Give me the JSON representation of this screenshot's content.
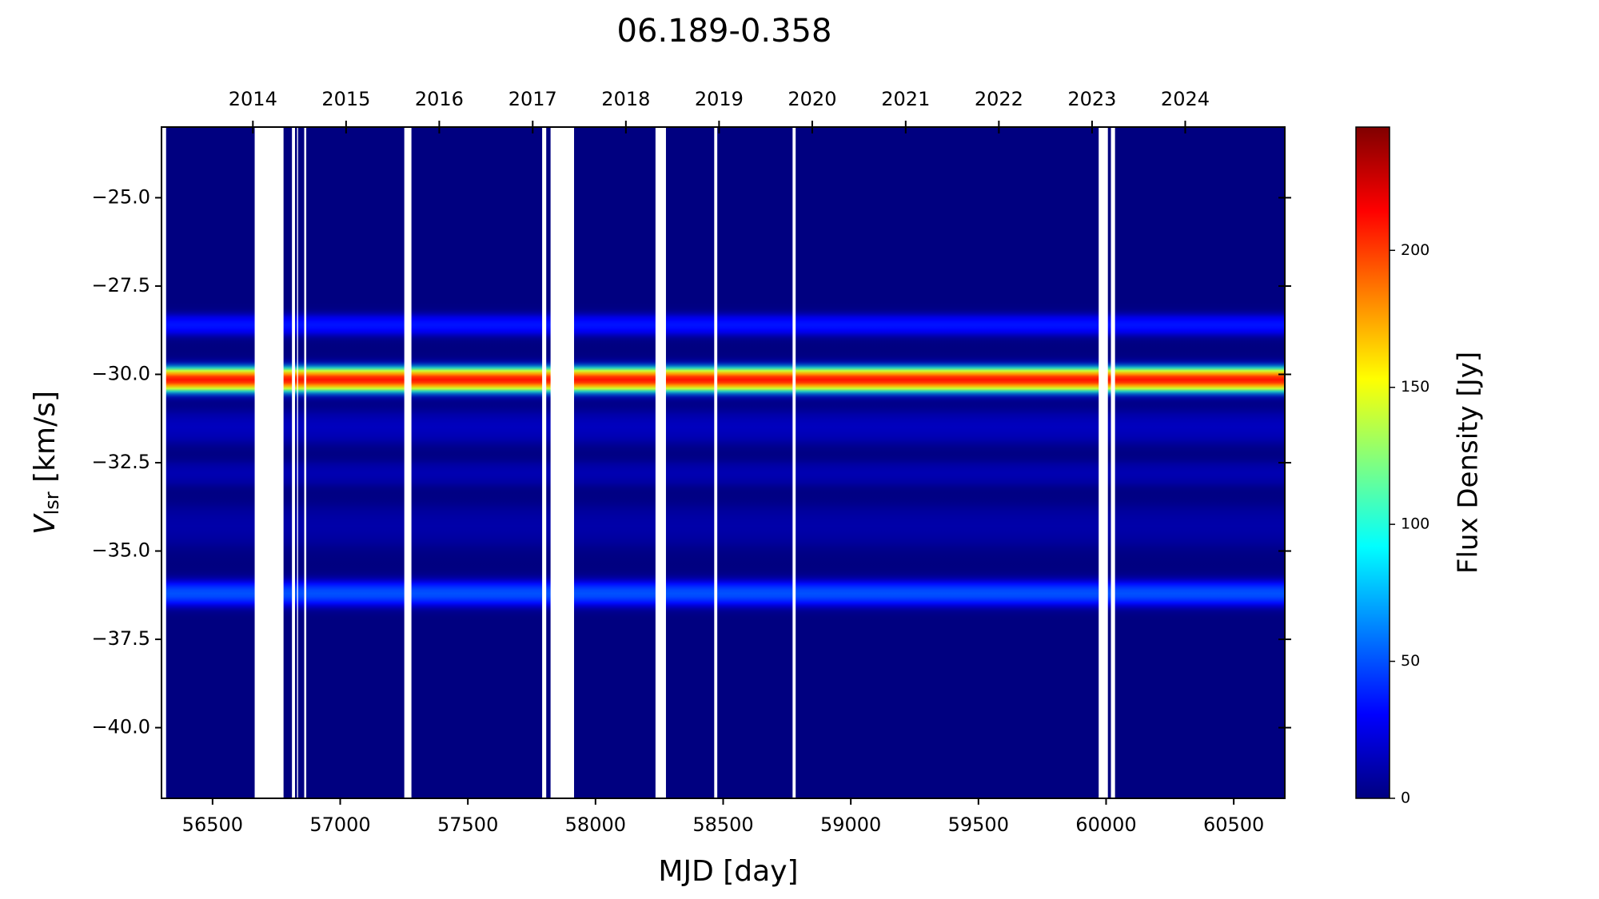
{
  "chart_data": {
    "type": "heatmap",
    "title": "06.189-0.358",
    "xlabel": "MJD [day]",
    "ylabel": [
      "V",
      "lsr",
      " [km/s]"
    ],
    "colorbar_label": "Flux Density [Jy]",
    "colormap": "jet",
    "xlim": [
      56300,
      60700
    ],
    "xticks": [
      56500,
      57000,
      57500,
      58000,
      58500,
      59000,
      59500,
      60000,
      60500
    ],
    "top_xticks": [
      {
        "value": 56658,
        "label": "2014"
      },
      {
        "value": 57023,
        "label": "2015"
      },
      {
        "value": 57388,
        "label": "2016"
      },
      {
        "value": 57754,
        "label": "2017"
      },
      {
        "value": 58119,
        "label": "2018"
      },
      {
        "value": 58484,
        "label": "2019"
      },
      {
        "value": 58849,
        "label": "2020"
      },
      {
        "value": 59215,
        "label": "2021"
      },
      {
        "value": 59580,
        "label": "2022"
      },
      {
        "value": 59945,
        "label": "2023"
      },
      {
        "value": 60310,
        "label": "2024"
      }
    ],
    "ylim": [
      -42,
      -23
    ],
    "yticks": [
      {
        "value": -40,
        "label": "−40.0"
      },
      {
        "value": -37.5,
        "label": "−37.5"
      },
      {
        "value": -35,
        "label": "−35.0"
      },
      {
        "value": -32.5,
        "label": "−32.5"
      },
      {
        "value": -30,
        "label": "−30.0"
      },
      {
        "value": -27.5,
        "label": "−27.5"
      },
      {
        "value": -25,
        "label": "−25.0"
      }
    ],
    "clim": [
      0,
      245
    ],
    "cticks": [
      0,
      50,
      100,
      150,
      200
    ],
    "components": [
      {
        "velocity": -34.3,
        "peak": 10,
        "width": 0.5
      },
      {
        "velocity": -32.8,
        "peak": 12,
        "width": 0.3
      },
      {
        "velocity": -31.5,
        "peak": 15,
        "width": 0.4
      },
      {
        "velocity": -28.6,
        "peak": 35,
        "width": 0.25
      },
      {
        "velocity": -36.2,
        "peak": 50,
        "width": 0.3
      },
      {
        "velocity": -30.15,
        "peak": 210,
        "width": 0.28
      }
    ],
    "gaps": [
      [
        56300,
        56318
      ],
      [
        56665,
        56778
      ],
      [
        56811,
        56823
      ],
      [
        56831,
        56835
      ],
      [
        56859,
        56867
      ],
      [
        57251,
        57279
      ],
      [
        57791,
        57807
      ],
      [
        57824,
        57916
      ],
      [
        58235,
        58276
      ],
      [
        58465,
        58477
      ],
      [
        58772,
        58784
      ],
      [
        59971,
        60007
      ],
      [
        60019,
        60035
      ]
    ]
  }
}
